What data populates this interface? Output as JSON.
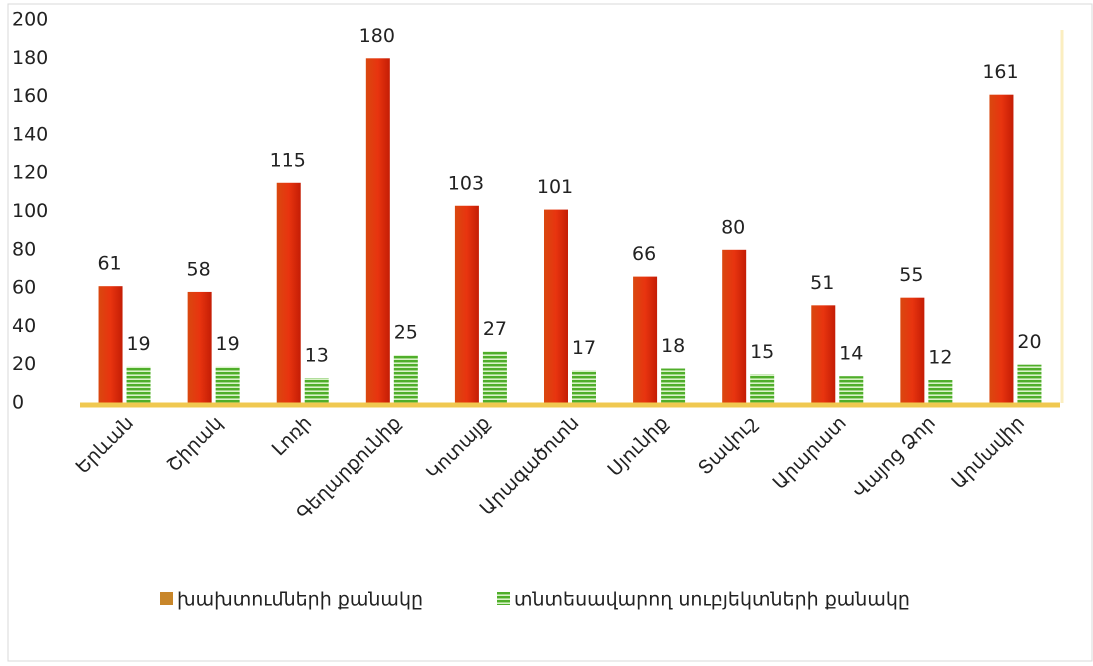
{
  "chart_data": {
    "type": "bar",
    "categories": [
      "Երևան",
      "Շիրակ",
      "Լոռի",
      "Գեղարքունիք",
      "Կոտայք",
      "Արագածոտն",
      "Սյունիք",
      "Տավուշ",
      "Արարատ",
      "Վայոց Ձոր",
      "Արմավիր"
    ],
    "series": [
      {
        "name": "խախտումների քանակը",
        "color": "#e8340f",
        "values": [
          61,
          58,
          115,
          180,
          103,
          101,
          66,
          80,
          51,
          55,
          161
        ]
      },
      {
        "name": "տնտեսավարող սուբյեկտների քանակը",
        "color": "#4fae2a",
        "values": [
          19,
          19,
          13,
          25,
          27,
          17,
          18,
          15,
          14,
          12,
          20
        ]
      }
    ],
    "ylim": [
      0,
      200
    ],
    "yticks": [
      0,
      20,
      40,
      60,
      80,
      100,
      120,
      140,
      160,
      180,
      200
    ],
    "grid": false,
    "legend": "bottom"
  }
}
